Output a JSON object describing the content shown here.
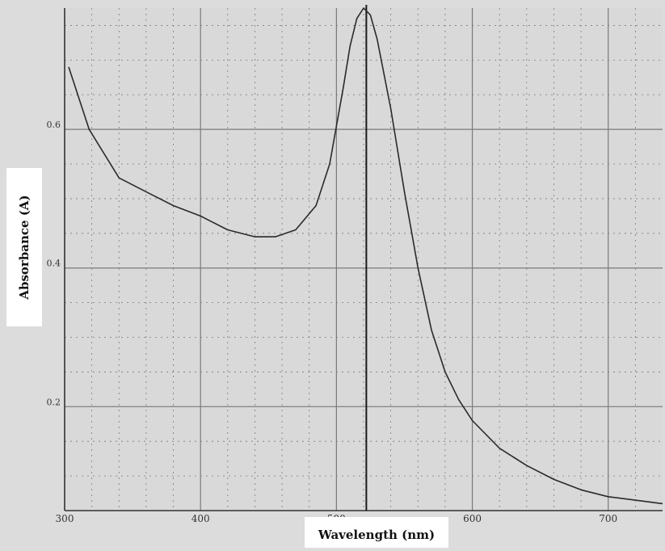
{
  "chart_data": {
    "type": "line",
    "xlabel": "Wavelength (nm)",
    "ylabel": "Absorbance  (A)",
    "xlim": [
      300,
      740
    ],
    "ylim": [
      0.05,
      0.775
    ],
    "x_ticks": [
      300,
      400,
      500,
      600,
      700
    ],
    "x_tick_labels": [
      "300",
      "400",
      "500",
      "600",
      "700"
    ],
    "y_ticks": [
      0.2,
      0.4,
      0.6
    ],
    "y_tick_labels": [
      "0.2",
      "0.4",
      "0.6"
    ],
    "grid": true,
    "marker_line_x": 522,
    "colors": {
      "background": "#dcdcdc",
      "plot_bg": "#d9d9d9",
      "grid": "#7a7a7a",
      "line": "#2a2a2a"
    },
    "series": [
      {
        "x": [
          303,
          318,
          340,
          360,
          380,
          400,
          420,
          440,
          455,
          470,
          485,
          495,
          505,
          510,
          515,
          520,
          525,
          530,
          540,
          550,
          560,
          570,
          580,
          590,
          600,
          620,
          640,
          660,
          680,
          700,
          720,
          740
        ],
        "y": [
          0.69,
          0.6,
          0.53,
          0.51,
          0.49,
          0.475,
          0.455,
          0.445,
          0.445,
          0.455,
          0.49,
          0.55,
          0.66,
          0.72,
          0.76,
          0.775,
          0.765,
          0.73,
          0.63,
          0.51,
          0.4,
          0.31,
          0.25,
          0.21,
          0.18,
          0.14,
          0.115,
          0.095,
          0.08,
          0.07,
          0.065,
          0.06
        ]
      }
    ]
  }
}
